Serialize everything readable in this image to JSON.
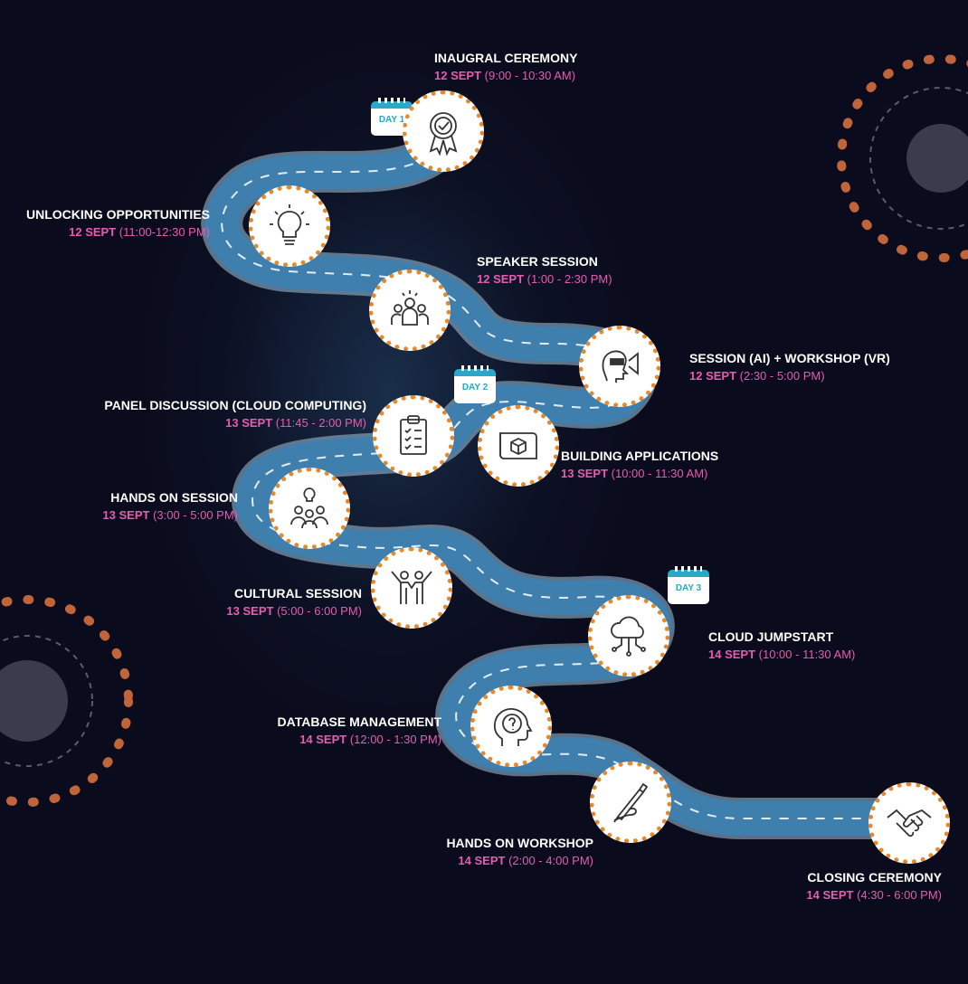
{
  "days": [
    "DAY 1",
    "DAY 2",
    "DAY 3"
  ],
  "events": [
    {
      "title": "INAUGRAL CEREMONY",
      "date": "12 SEPT",
      "time": "(9:00 - 10:30 AM)",
      "icon": "award-badge-icon"
    },
    {
      "title": "UNLOCKING OPPORTUNITIES",
      "date": "12 SEPT",
      "time": "(11:00-12:30 PM)",
      "icon": "lightbulb-icon"
    },
    {
      "title": "SPEAKER SESSION",
      "date": "12 SEPT",
      "time": "(1:00 - 2:30 PM)",
      "icon": "audience-icon"
    },
    {
      "title": "SESSION (AI) + WORKSHOP (VR)",
      "date": "12 SEPT",
      "time": "(2:30 - 5:00 PM)",
      "icon": "vr-headset-icon"
    },
    {
      "title": "PANEL DISCUSSION (CLOUD COMPUTING)",
      "date": "13 SEPT",
      "time": "(11:45 - 2:00 PM)",
      "icon": "clipboard-checklist-icon"
    },
    {
      "title": "BUILDING APPLICATIONS",
      "date": "13 SEPT",
      "time": "(10:00 - 11:30 AM)",
      "icon": "blueprint-icon"
    },
    {
      "title": "HANDS ON SESSION",
      "date": "13 SEPT",
      "time": "(3:00 - 5:00 PM)",
      "icon": "team-idea-icon"
    },
    {
      "title": "CULTURAL SESSION",
      "date": "13 SEPT",
      "time": "(5:00 - 6:00  PM)",
      "icon": "people-celebrating-icon"
    },
    {
      "title": "CLOUD JUMPSTART",
      "date": "14 SEPT",
      "time": "(10:00 - 11:30 AM)",
      "icon": "cloud-network-icon"
    },
    {
      "title": "DATABASE MANAGEMENT",
      "date": "14 SEPT",
      "time": "(12:00 - 1:30 PM)",
      "icon": "head-question-icon"
    },
    {
      "title": "HANDS ON WORKSHOP",
      "date": "14 SEPT",
      "time": "(2:00 - 4:00 PM)",
      "icon": "hand-pen-icon"
    },
    {
      "title": "CLOSING CEREMONY",
      "date": "14 SEPT",
      "time": "(4:30 - 6:00 PM)",
      "icon": "handshake-icon"
    }
  ],
  "colors": {
    "background": "#0a0b1c",
    "road": "#3f7fae",
    "road_edge": "#9fc4dd",
    "accent_pink": "#e85bb0",
    "dot_orange": "#e58a2c",
    "calendar": "#2aa7c9"
  }
}
